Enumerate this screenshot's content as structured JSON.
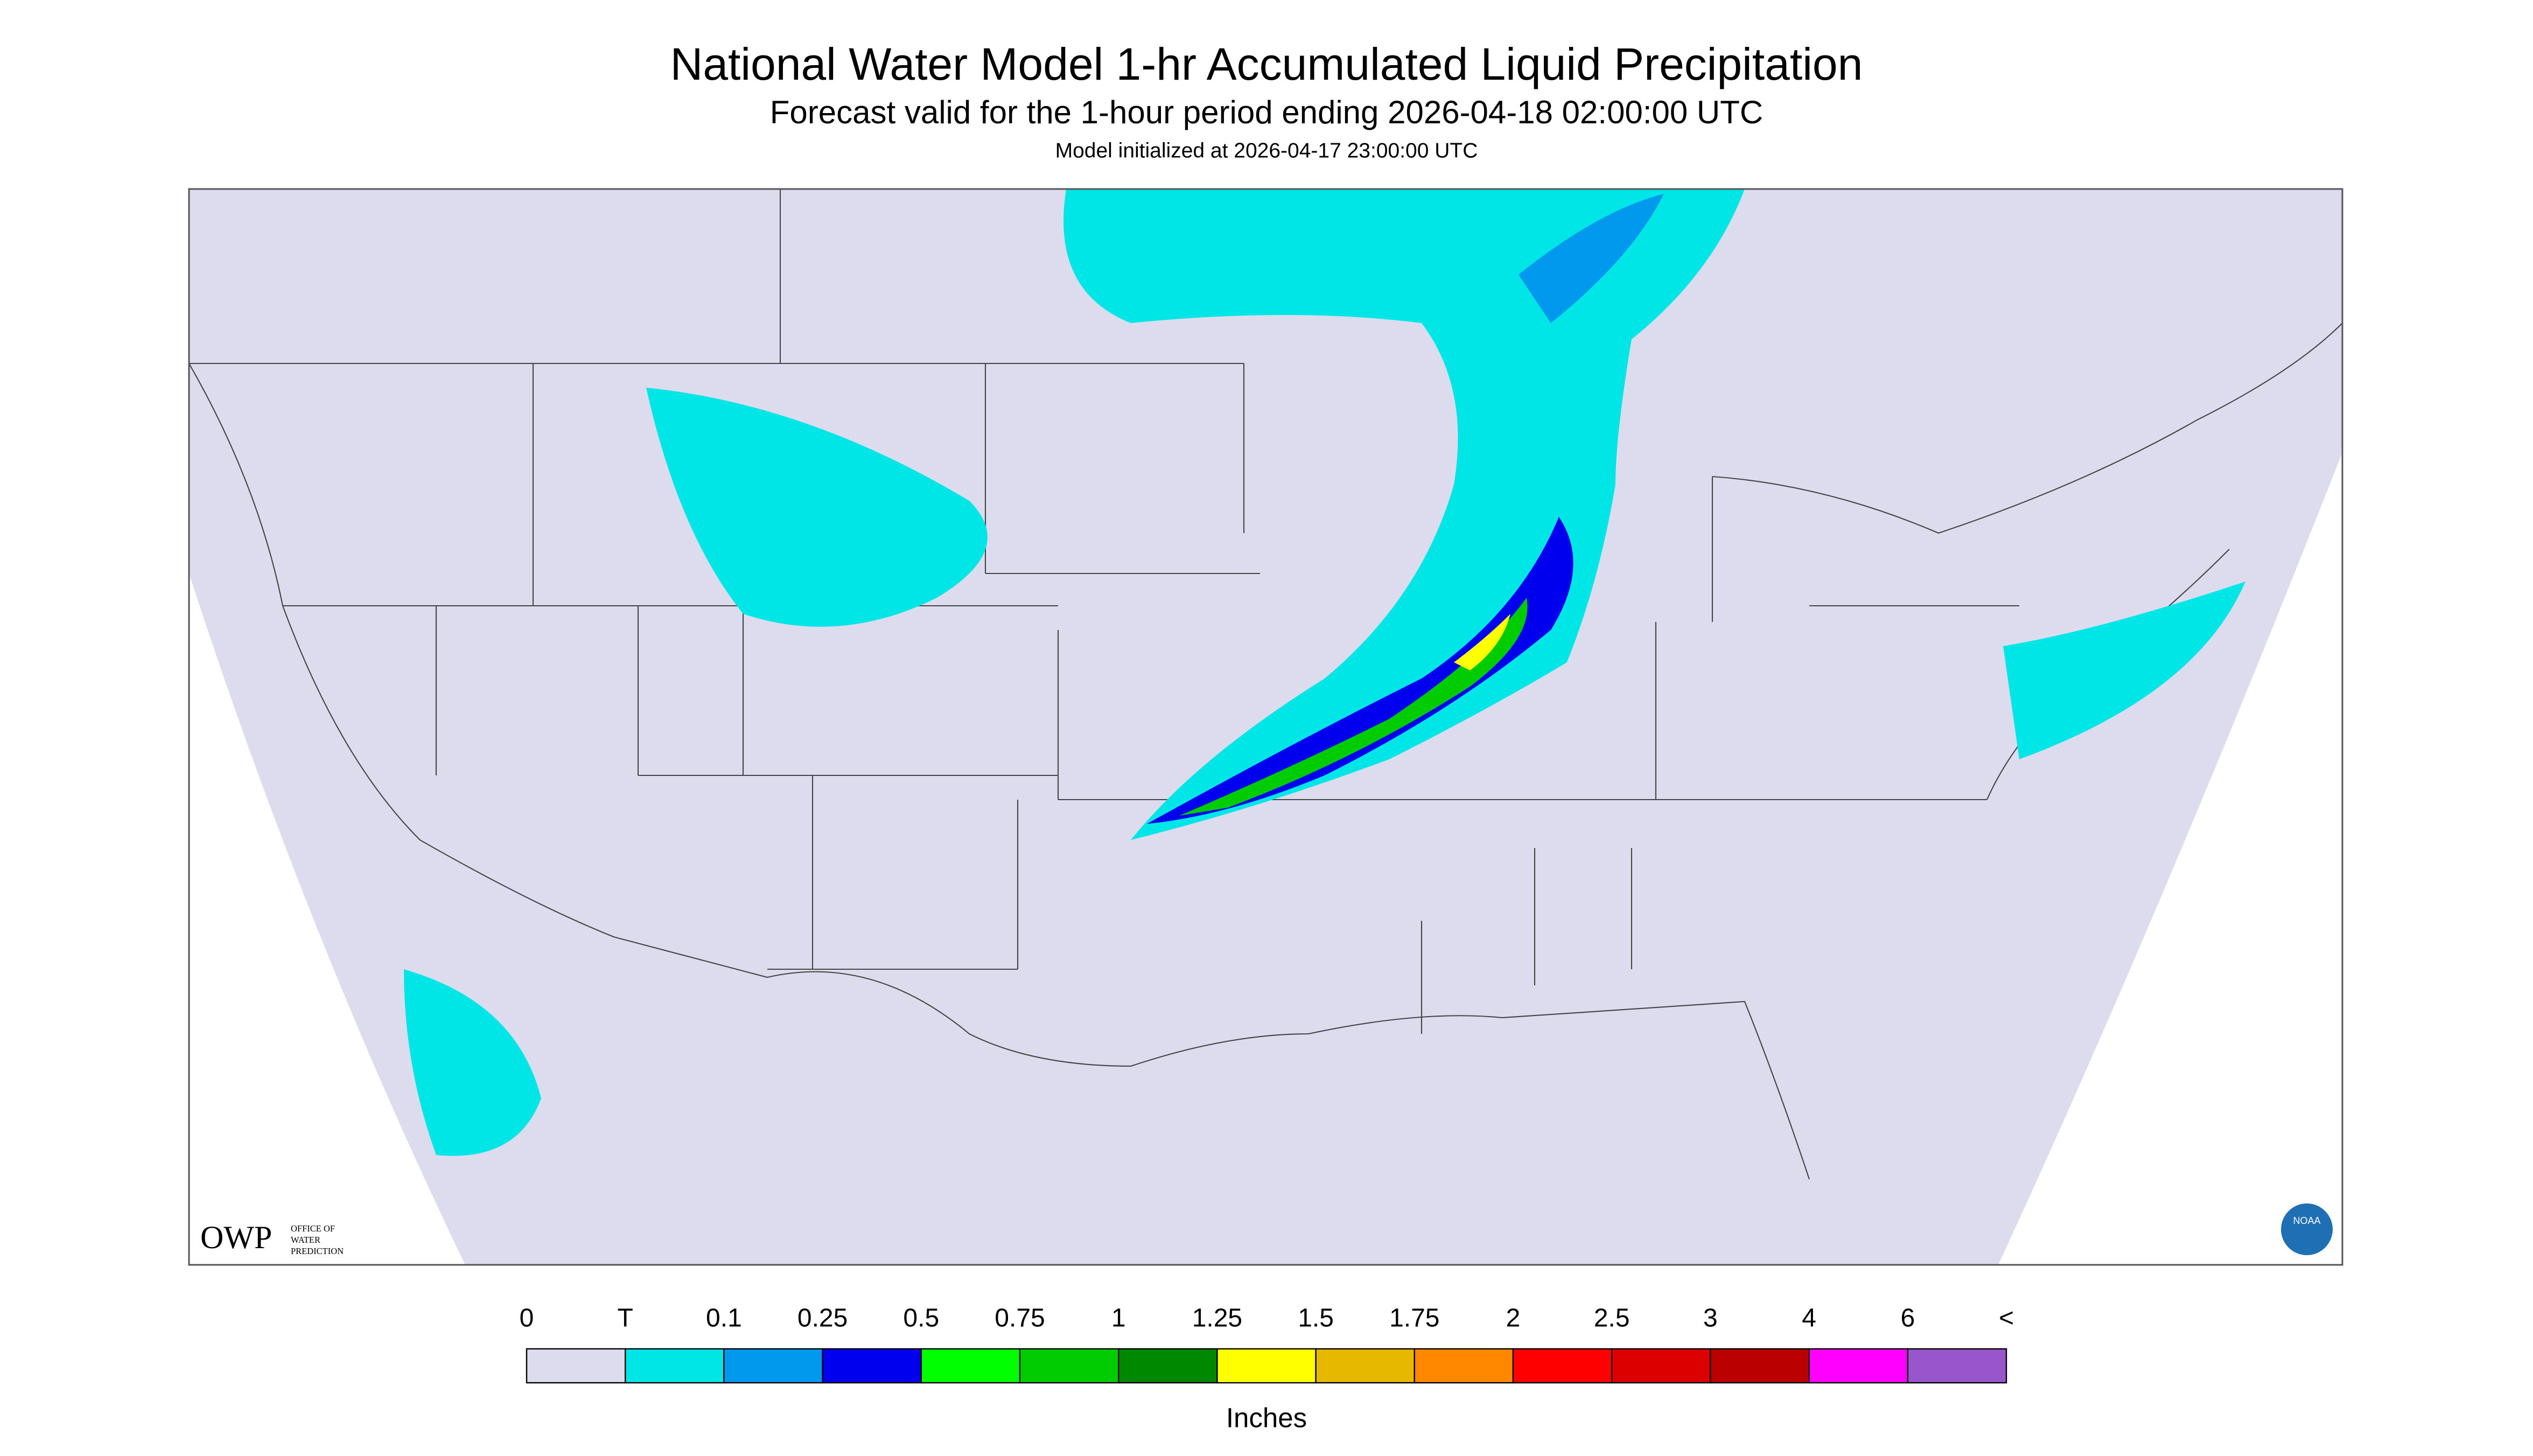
{
  "header": {
    "title": "National Water Model 1-hr Accumulated Liquid Precipitation",
    "subtitle": "Forecast valid for the 1-hour period ending 2026-04-18 02:00:00 UTC",
    "init": "Model initialized at 2026-04-17 23:00:00 UTC"
  },
  "logos": {
    "owp": "OWP",
    "owp_lines": [
      "OFFICE OF",
      "WATER",
      "PREDICTION"
    ],
    "noaa": "NOAA"
  },
  "legend": {
    "ticks": [
      "0",
      "T",
      "0.1",
      "0.25",
      "0.5",
      "0.75",
      "1",
      "1.25",
      "1.5",
      "1.75",
      "2",
      "2.5",
      "3",
      "4",
      "6",
      "<"
    ],
    "colors": [
      "#dcdcee",
      "#00e6e6",
      "#0099ee",
      "#0000ee",
      "#00ff00",
      "#00cc00",
      "#008800",
      "#ffff00",
      "#e6b800",
      "#ff8800",
      "#ff0000",
      "#dd0000",
      "#bb0000",
      "#ff00ff",
      "#9955cc"
    ],
    "unit": "Inches"
  }
}
